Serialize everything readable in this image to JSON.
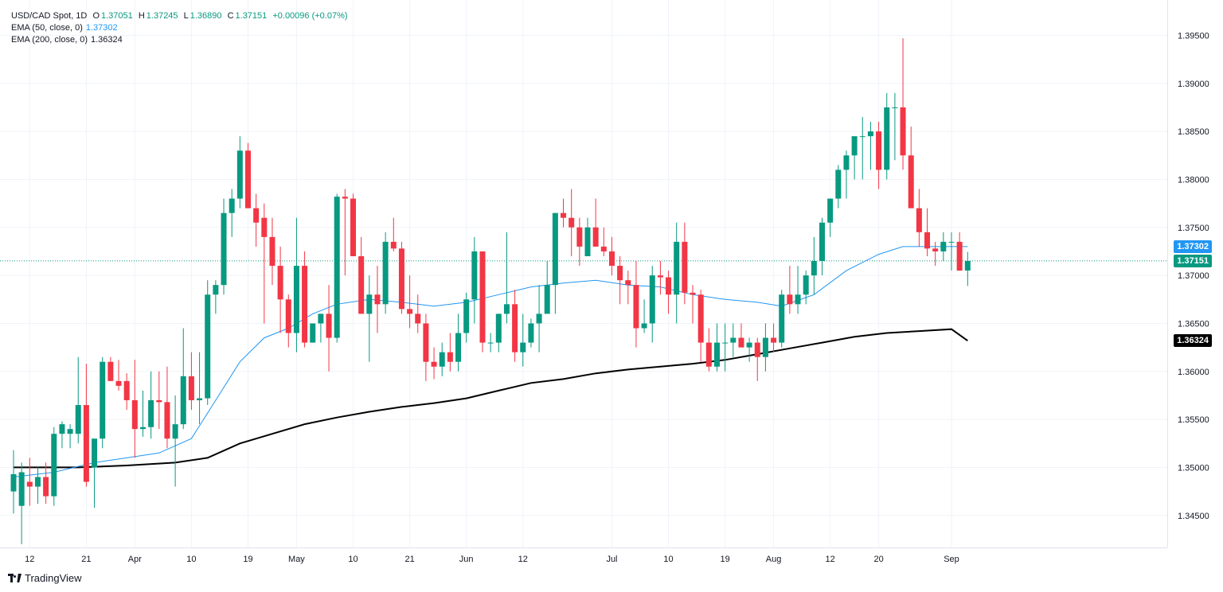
{
  "legend": {
    "symbol": "USD/CAD Spot, 1D",
    "o_label": "O",
    "o": "1.37051",
    "h_label": "H",
    "h": "1.37245",
    "l_label": "L",
    "l": "1.36890",
    "c_label": "C",
    "c": "1.37151",
    "change": "+0.00096 (+0.07%)",
    "ema50_label": "EMA (50, close, 0)",
    "ema50_value": "1.37302",
    "ema200_label": "EMA (200, close, 0)",
    "ema200_value": "1.36324"
  },
  "price_tags": {
    "ema50": "1.37302",
    "last": "1.37151",
    "ema200": "1.36324"
  },
  "colors": {
    "up": "#089981",
    "down": "#f23645",
    "ema50": "#2196f3",
    "ema200": "#000000",
    "ema50_tag": "#2196f3",
    "last_tag": "#089981",
    "ema200_tag": "#000000",
    "grid": "#f0f3fa"
  },
  "brand": "TradingView",
  "chart_data": {
    "type": "candlestick",
    "title": "USD/CAD Spot, 1D",
    "ylim": [
      1.3415,
      1.3962
    ],
    "y_ticks": [
      "1.34500",
      "1.35000",
      "1.35500",
      "1.36000",
      "1.36500",
      "1.37000",
      "1.37500",
      "1.38000",
      "1.38500",
      "1.39000",
      "1.39500"
    ],
    "x_ticks": [
      {
        "label": "12",
        "index": 2
      },
      {
        "label": "21",
        "index": 9
      },
      {
        "label": "Apr",
        "index": 15
      },
      {
        "label": "10",
        "index": 22
      },
      {
        "label": "19",
        "index": 29
      },
      {
        "label": "May",
        "index": 35
      },
      {
        "label": "10",
        "index": 42
      },
      {
        "label": "21",
        "index": 49
      },
      {
        "label": "Jun",
        "index": 56
      },
      {
        "label": "12",
        "index": 63
      },
      {
        "label": "Jul",
        "index": 74
      },
      {
        "label": "10",
        "index": 81
      },
      {
        "label": "19",
        "index": 88
      },
      {
        "label": "Aug",
        "index": 94
      },
      {
        "label": "12",
        "index": 101
      },
      {
        "label": "20",
        "index": 107
      },
      {
        "label": "Sep",
        "index": 116
      }
    ],
    "last_price": 1.37151,
    "ohlc": [
      [
        1.3475,
        1.3518,
        1.3452,
        1.3493
      ],
      [
        1.346,
        1.3505,
        1.342,
        1.3495
      ],
      [
        1.3485,
        1.351,
        1.346,
        1.348
      ],
      [
        1.348,
        1.35,
        1.3462,
        1.349
      ],
      [
        1.349,
        1.3505,
        1.3462,
        1.347
      ],
      [
        1.347,
        1.3542,
        1.346,
        1.3535
      ],
      [
        1.3535,
        1.3548,
        1.352,
        1.3545
      ],
      [
        1.3535,
        1.3545,
        1.352,
        1.354
      ],
      [
        1.3535,
        1.3615,
        1.3525,
        1.3565
      ],
      [
        1.3565,
        1.3608,
        1.348,
        1.3485
      ],
      [
        1.35,
        1.353,
        1.3458,
        1.353
      ],
      [
        1.353,
        1.3615,
        1.352,
        1.361
      ],
      [
        1.361,
        1.3615,
        1.359,
        1.359
      ],
      [
        1.359,
        1.3612,
        1.358,
        1.3585
      ],
      [
        1.359,
        1.3598,
        1.356,
        1.357
      ],
      [
        1.357,
        1.3612,
        1.351,
        1.354
      ],
      [
        1.354,
        1.358,
        1.3532,
        1.3542
      ],
      [
        1.3542,
        1.36,
        1.353,
        1.357
      ],
      [
        1.357,
        1.36,
        1.354,
        1.3568
      ],
      [
        1.3568,
        1.3605,
        1.352,
        1.353
      ],
      [
        1.353,
        1.3575,
        1.348,
        1.3545
      ],
      [
        1.3545,
        1.3645,
        1.354,
        1.3595
      ],
      [
        1.3595,
        1.362,
        1.356,
        1.357
      ],
      [
        1.357,
        1.362,
        1.3545,
        1.3572
      ],
      [
        1.3572,
        1.3695,
        1.3565,
        1.368
      ],
      [
        1.368,
        1.3695,
        1.366,
        1.369
      ],
      [
        1.369,
        1.378,
        1.368,
        1.3765
      ],
      [
        1.3765,
        1.379,
        1.374,
        1.378
      ],
      [
        1.378,
        1.3845,
        1.377,
        1.383
      ],
      [
        1.383,
        1.3838,
        1.377,
        1.377
      ],
      [
        1.377,
        1.3785,
        1.373,
        1.3755
      ],
      [
        1.376,
        1.3775,
        1.365,
        1.374
      ],
      [
        1.374,
        1.376,
        1.369,
        1.371
      ],
      [
        1.371,
        1.373,
        1.364,
        1.3675
      ],
      [
        1.3675,
        1.368,
        1.3625,
        1.364
      ],
      [
        1.364,
        1.376,
        1.362,
        1.371
      ],
      [
        1.371,
        1.3725,
        1.3625,
        1.363
      ],
      [
        1.363,
        1.365,
        1.363,
        1.365
      ],
      [
        1.365,
        1.366,
        1.363,
        1.366
      ],
      [
        1.366,
        1.369,
        1.36,
        1.3635
      ],
      [
        1.3635,
        1.3785,
        1.363,
        1.3782
      ],
      [
        1.3782,
        1.379,
        1.37,
        1.378
      ],
      [
        1.378,
        1.3785,
        1.372,
        1.372
      ],
      [
        1.372,
        1.374,
        1.366,
        1.366
      ],
      [
        1.366,
        1.37,
        1.361,
        1.368
      ],
      [
        1.368,
        1.371,
        1.364,
        1.367
      ],
      [
        1.367,
        1.3745,
        1.366,
        1.3735
      ],
      [
        1.3735,
        1.376,
        1.3725,
        1.3728
      ],
      [
        1.3728,
        1.3735,
        1.366,
        1.3665
      ],
      [
        1.3665,
        1.37,
        1.3645,
        1.366
      ],
      [
        1.366,
        1.368,
        1.364,
        1.365
      ],
      [
        1.365,
        1.366,
        1.359,
        1.361
      ],
      [
        1.361,
        1.3625,
        1.3592,
        1.3605
      ],
      [
        1.3605,
        1.363,
        1.3595,
        1.362
      ],
      [
        1.362,
        1.364,
        1.36,
        1.361
      ],
      [
        1.361,
        1.366,
        1.36,
        1.364
      ],
      [
        1.364,
        1.3682,
        1.363,
        1.3675
      ],
      [
        1.3675,
        1.374,
        1.365,
        1.3725
      ],
      [
        1.3725,
        1.3725,
        1.362,
        1.363
      ],
      [
        1.363,
        1.364,
        1.362,
        1.363
      ],
      [
        1.363,
        1.366,
        1.362,
        1.366
      ],
      [
        1.366,
        1.3745,
        1.365,
        1.367
      ],
      [
        1.367,
        1.3685,
        1.361,
        1.362
      ],
      [
        1.362,
        1.366,
        1.3605,
        1.363
      ],
      [
        1.363,
        1.3655,
        1.3625,
        1.365
      ],
      [
        1.365,
        1.369,
        1.362,
        1.366
      ],
      [
        1.366,
        1.3715,
        1.366,
        1.369
      ],
      [
        1.369,
        1.3765,
        1.366,
        1.3765
      ],
      [
        1.3765,
        1.378,
        1.375,
        1.376
      ],
      [
        1.376,
        1.379,
        1.372,
        1.375
      ],
      [
        1.375,
        1.376,
        1.371,
        1.373
      ],
      [
        1.372,
        1.376,
        1.372,
        1.375
      ],
      [
        1.375,
        1.378,
        1.373,
        1.373
      ],
      [
        1.373,
        1.375,
        1.372,
        1.3725
      ],
      [
        1.3725,
        1.374,
        1.37,
        1.371
      ],
      [
        1.371,
        1.372,
        1.367,
        1.3695
      ],
      [
        1.3695,
        1.3705,
        1.367,
        1.369
      ],
      [
        1.369,
        1.3715,
        1.3625,
        1.3645
      ],
      [
        1.3645,
        1.3675,
        1.364,
        1.365
      ],
      [
        1.365,
        1.371,
        1.363,
        1.37
      ],
      [
        1.37,
        1.3715,
        1.368,
        1.3698
      ],
      [
        1.3698,
        1.3705,
        1.366,
        1.368
      ],
      [
        1.368,
        1.3755,
        1.365,
        1.3735
      ],
      [
        1.3735,
        1.3755,
        1.367,
        1.3682
      ],
      [
        1.3682,
        1.369,
        1.365,
        1.368
      ],
      [
        1.368,
        1.3685,
        1.361,
        1.363
      ],
      [
        1.363,
        1.3645,
        1.36,
        1.3605
      ],
      [
        1.3605,
        1.365,
        1.36,
        1.363
      ],
      [
        1.363,
        1.365,
        1.36,
        1.363
      ],
      [
        1.363,
        1.365,
        1.3615,
        1.3635
      ],
      [
        1.3635,
        1.365,
        1.3625,
        1.3625
      ],
      [
        1.3625,
        1.3635,
        1.361,
        1.363
      ],
      [
        1.363,
        1.3635,
        1.359,
        1.3615
      ],
      [
        1.3615,
        1.365,
        1.36,
        1.3635
      ],
      [
        1.3635,
        1.365,
        1.362,
        1.363
      ],
      [
        1.363,
        1.3685,
        1.3625,
        1.368
      ],
      [
        1.368,
        1.371,
        1.366,
        1.367
      ],
      [
        1.367,
        1.371,
        1.366,
        1.368
      ],
      [
        1.368,
        1.3705,
        1.367,
        1.37
      ],
      [
        1.37,
        1.374,
        1.368,
        1.3715
      ],
      [
        1.3715,
        1.376,
        1.37,
        1.3755
      ],
      [
        1.3755,
        1.378,
        1.374,
        1.378
      ],
      [
        1.378,
        1.3815,
        1.377,
        1.381
      ],
      [
        1.381,
        1.383,
        1.378,
        1.3825
      ],
      [
        1.3825,
        1.384,
        1.38,
        1.3845
      ],
      [
        1.3845,
        1.3865,
        1.38,
        1.3845
      ],
      [
        1.3845,
        1.386,
        1.381,
        1.385
      ],
      [
        1.385,
        1.386,
        1.379,
        1.381
      ],
      [
        1.381,
        1.389,
        1.38,
        1.3875
      ],
      [
        1.3875,
        1.389,
        1.382,
        1.3875
      ],
      [
        1.3875,
        1.3947,
        1.381,
        1.3825
      ],
      [
        1.3825,
        1.3855,
        1.377,
        1.377
      ],
      [
        1.377,
        1.379,
        1.373,
        1.3745
      ],
      [
        1.3745,
        1.377,
        1.372,
        1.3728
      ],
      [
        1.3728,
        1.3735,
        1.371,
        1.3725
      ],
      [
        1.3725,
        1.3745,
        1.3715,
        1.3735
      ],
      [
        1.3735,
        1.3745,
        1.3705,
        1.3735
      ],
      [
        1.3735,
        1.3745,
        1.3705,
        1.3705
      ],
      [
        1.37051,
        1.37245,
        1.3689,
        1.37151
      ]
    ],
    "ema50": [
      [
        0,
        1.349
      ],
      [
        5,
        1.3495
      ],
      [
        10,
        1.3505
      ],
      [
        14,
        1.351
      ],
      [
        18,
        1.3515
      ],
      [
        22,
        1.353
      ],
      [
        25,
        1.357
      ],
      [
        28,
        1.361
      ],
      [
        31,
        1.3635
      ],
      [
        34,
        1.3645
      ],
      [
        37,
        1.366
      ],
      [
        40,
        1.367
      ],
      [
        44,
        1.3675
      ],
      [
        48,
        1.3672
      ],
      [
        52,
        1.3668
      ],
      [
        56,
        1.3672
      ],
      [
        60,
        1.368
      ],
      [
        64,
        1.3688
      ],
      [
        68,
        1.3692
      ],
      [
        72,
        1.3695
      ],
      [
        76,
        1.369
      ],
      [
        80,
        1.3688
      ],
      [
        84,
        1.368
      ],
      [
        88,
        1.3675
      ],
      [
        92,
        1.3672
      ],
      [
        95,
        1.3668
      ],
      [
        99,
        1.368
      ],
      [
        103,
        1.3705
      ],
      [
        107,
        1.3722
      ],
      [
        110,
        1.373
      ],
      [
        114,
        1.373
      ],
      [
        118,
        1.373
      ]
    ],
    "ema200": [
      [
        0,
        1.35
      ],
      [
        8,
        1.35
      ],
      [
        14,
        1.3502
      ],
      [
        20,
        1.3505
      ],
      [
        24,
        1.351
      ],
      [
        28,
        1.3525
      ],
      [
        32,
        1.3535
      ],
      [
        36,
        1.3545
      ],
      [
        40,
        1.3552
      ],
      [
        44,
        1.3558
      ],
      [
        48,
        1.3563
      ],
      [
        52,
        1.3567
      ],
      [
        56,
        1.3572
      ],
      [
        60,
        1.358
      ],
      [
        64,
        1.3588
      ],
      [
        68,
        1.3592
      ],
      [
        72,
        1.3598
      ],
      [
        76,
        1.3602
      ],
      [
        80,
        1.3605
      ],
      [
        84,
        1.3608
      ],
      [
        88,
        1.3612
      ],
      [
        92,
        1.3618
      ],
      [
        96,
        1.3624
      ],
      [
        100,
        1.363
      ],
      [
        104,
        1.3636
      ],
      [
        108,
        1.364
      ],
      [
        112,
        1.3642
      ],
      [
        116,
        1.3644
      ],
      [
        118,
        1.3632
      ]
    ]
  }
}
